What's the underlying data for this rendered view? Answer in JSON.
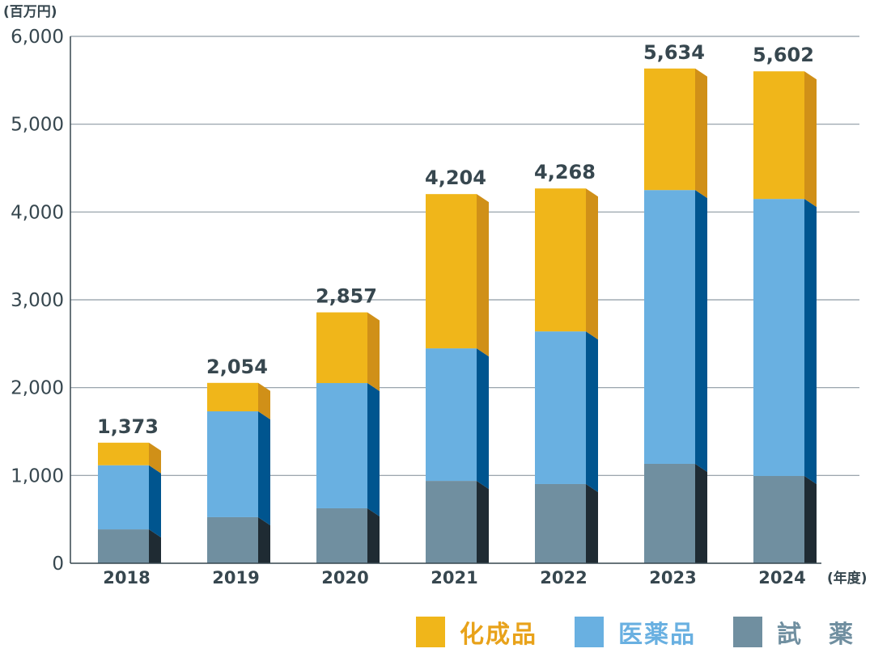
{
  "chart_data": {
    "type": "bar",
    "stacked": true,
    "style": "3d-stacked-columns",
    "title": "",
    "unit_label": "(百万円)",
    "xlabel": "(年度)",
    "ylabel": "",
    "ylim": [
      0,
      6000
    ],
    "yticks": [
      0,
      1000,
      2000,
      3000,
      4000,
      5000,
      6000
    ],
    "ytick_labels": [
      "0",
      "1,000",
      "2,000",
      "3,000",
      "4,000",
      "5,000",
      "6,000"
    ],
    "grid": true,
    "legend_position": "bottom-right",
    "categories": [
      "2018",
      "2019",
      "2020",
      "2021",
      "2022",
      "2023",
      "2024"
    ],
    "series": [
      {
        "name": "試　薬",
        "color": "#708fa0",
        "side_color": "#1f2b33",
        "values": [
          386,
          525,
          626,
          938,
          902,
          1132,
          994
        ]
      },
      {
        "name": "医薬品",
        "color": "#69b0e1",
        "side_color": "#00558f",
        "values": [
          730,
          1205,
          1426,
          1509,
          1738,
          3118,
          3155
        ]
      },
      {
        "name": "化成品",
        "color": "#f0b61a",
        "side_color": "#d09018",
        "values": [
          257,
          324,
          805,
          1757,
          1628,
          1384,
          1453
        ]
      }
    ],
    "totals": [
      1373,
      2054,
      2857,
      4204,
      4268,
      5634,
      5602
    ],
    "total_labels": [
      "1,373",
      "2,054",
      "2,857",
      "4,204",
      "4,268",
      "5,634",
      "5,602"
    ]
  },
  "legend": [
    {
      "label": "化成品",
      "color": "#f0b61a",
      "text_color": "#e8a21a"
    },
    {
      "label": "医薬品",
      "color": "#69b0e1",
      "text_color": "#69b0e1"
    },
    {
      "label": "試　薬",
      "color": "#708fa0",
      "text_color": "#708fa0"
    }
  ],
  "colors": {
    "axis": "#37474f",
    "grid": "#8e9aa3",
    "text": "#37474f"
  }
}
